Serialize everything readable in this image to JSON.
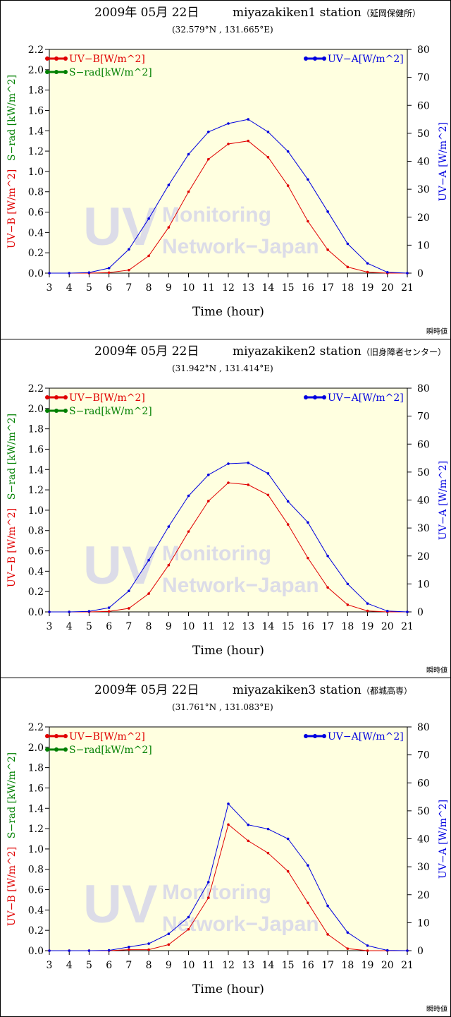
{
  "colors": {
    "uvb": "#e00000",
    "srad": "#008000",
    "uva": "#0000e0",
    "plot_bg": "#ffffe0",
    "watermark": "#dcdce8"
  },
  "watermark": {
    "big": "UV",
    "line1": "Monitoring",
    "line2": "Network−Japan"
  },
  "chart_data": [
    {
      "type": "line",
      "title": "2009年 05月 22日",
      "station": "miyazakiken1 station",
      "station_jp": "（延岡保健所）",
      "coords": "(32.579°N , 131.665°E)",
      "xlabel": "Time (hour)",
      "ylabel_left_uvb": "UV−B [W/m^2]",
      "ylabel_left_srad": "S−rad [kW/m^2]",
      "ylabel_right": "UV−A [W/m^2]",
      "note": "瞬時値",
      "x": [
        3,
        4,
        5,
        6,
        7,
        8,
        9,
        10,
        11,
        12,
        13,
        14,
        15,
        16,
        17,
        18,
        19,
        20,
        21
      ],
      "xlim": [
        3,
        21
      ],
      "ylim_left": [
        0,
        2.2
      ],
      "ylim_right": [
        0,
        80
      ],
      "left_ticks": [
        "0.0",
        "0.2",
        "0.4",
        "0.6",
        "0.8",
        "1.0",
        "1.2",
        "1.4",
        "1.6",
        "1.8",
        "2.0",
        "2.2"
      ],
      "right_ticks": [
        "0",
        "10",
        "20",
        "30",
        "40",
        "50",
        "60",
        "70",
        "80"
      ],
      "legend": {
        "uvb": "UV−B[W/m^2]",
        "srad": "S−rad[kW/m^2]",
        "uva": "UV−A[W/m^2]"
      },
      "series": [
        {
          "name": "UV−B[W/m^2]",
          "axis": "left",
          "color": "#e00000",
          "values": [
            0,
            0,
            0,
            0.005,
            0.03,
            0.17,
            0.45,
            0.8,
            1.12,
            1.27,
            1.3,
            1.14,
            0.86,
            0.51,
            0.23,
            0.06,
            0.01,
            0,
            0
          ]
        },
        {
          "name": "UV−A[W/m^2]",
          "axis": "right",
          "color": "#0000e0",
          "values": [
            0,
            0,
            0.2,
            1.8,
            8.5,
            19.5,
            31.5,
            42.5,
            50.5,
            53.5,
            55,
            50.5,
            43.5,
            33.5,
            22,
            10.5,
            3.5,
            0.3,
            0
          ]
        }
      ]
    },
    {
      "type": "line",
      "title": "2009年 05月 22日",
      "station": "miyazakiken2 station",
      "station_jp": "（旧身障者センター）",
      "coords": "(31.942°N , 131.414°E)",
      "xlabel": "Time (hour)",
      "ylabel_left_uvb": "UV−B [W/m^2]",
      "ylabel_left_srad": "S−rad [kW/m^2]",
      "ylabel_right": "UV−A [W/m^2]",
      "note": "瞬時値",
      "x": [
        3,
        4,
        5,
        6,
        7,
        8,
        9,
        10,
        11,
        12,
        13,
        14,
        15,
        16,
        17,
        18,
        19,
        20,
        21
      ],
      "xlim": [
        3,
        21
      ],
      "ylim_left": [
        0,
        2.2
      ],
      "ylim_right": [
        0,
        80
      ],
      "left_ticks": [
        "0.0",
        "0.2",
        "0.4",
        "0.6",
        "0.8",
        "1.0",
        "1.2",
        "1.4",
        "1.6",
        "1.8",
        "2.0",
        "2.2"
      ],
      "right_ticks": [
        "0",
        "10",
        "20",
        "30",
        "40",
        "50",
        "60",
        "70",
        "80"
      ],
      "legend": {
        "uvb": "UV−B[W/m^2]",
        "srad": "S−rad[kW/m^2]",
        "uva": "UV−A[W/m^2]"
      },
      "series": [
        {
          "name": "UV−B[W/m^2]",
          "axis": "left",
          "color": "#e00000",
          "values": [
            0,
            0,
            0,
            0.005,
            0.035,
            0.18,
            0.46,
            0.79,
            1.09,
            1.27,
            1.25,
            1.15,
            0.86,
            0.53,
            0.24,
            0.07,
            0.01,
            0,
            0
          ]
        },
        {
          "name": "UV−A[W/m^2]",
          "axis": "right",
          "color": "#0000e0",
          "values": [
            0,
            0,
            0.2,
            1.5,
            7.5,
            18.5,
            30.5,
            41.5,
            49,
            53,
            53.3,
            49.5,
            39.5,
            32,
            20,
            10,
            3,
            0.3,
            0
          ]
        }
      ]
    },
    {
      "type": "line",
      "title": "2009年 05月 22日",
      "station": "miyazakiken3 station",
      "station_jp": "（都城高専）",
      "coords": "(31.761°N , 131.083°E)",
      "xlabel": "Time (hour)",
      "ylabel_left_uvb": "UV−B [W/m^2]",
      "ylabel_left_srad": "S−rad [kW/m^2]",
      "ylabel_right": "UV−A [W/m^2]",
      "note": "瞬時値",
      "x": [
        3,
        4,
        5,
        6,
        7,
        8,
        9,
        10,
        11,
        12,
        13,
        14,
        15,
        16,
        17,
        18,
        19,
        20,
        21
      ],
      "xlim": [
        3,
        21
      ],
      "ylim_left": [
        0,
        2.2
      ],
      "ylim_right": [
        0,
        80
      ],
      "left_ticks": [
        "0.0",
        "0.2",
        "0.4",
        "0.6",
        "0.8",
        "1.0",
        "1.2",
        "1.4",
        "1.6",
        "1.8",
        "2.0",
        "2.2"
      ],
      "right_ticks": [
        "0",
        "10",
        "20",
        "30",
        "40",
        "50",
        "60",
        "70",
        "80"
      ],
      "legend": {
        "uvb": "UV−B[W/m^2]",
        "srad": "S−rad[kW/m^2]",
        "uva": "UV−A[W/m^2]"
      },
      "series": [
        {
          "name": "UV−B[W/m^2]",
          "axis": "left",
          "color": "#e00000",
          "values": [
            0,
            0,
            0,
            0,
            0.01,
            0.01,
            0.06,
            0.21,
            0.52,
            1.24,
            1.08,
            0.96,
            0.78,
            0.47,
            0.16,
            0.02,
            0,
            0,
            0
          ]
        },
        {
          "name": "UV−A[W/m^2]",
          "axis": "right",
          "color": "#0000e0",
          "values": [
            0,
            0,
            0,
            0.1,
            1.3,
            2.5,
            6,
            12,
            24.5,
            52.5,
            45,
            43.5,
            40,
            30.5,
            16,
            6.5,
            1.8,
            0.1,
            0
          ]
        }
      ]
    }
  ]
}
